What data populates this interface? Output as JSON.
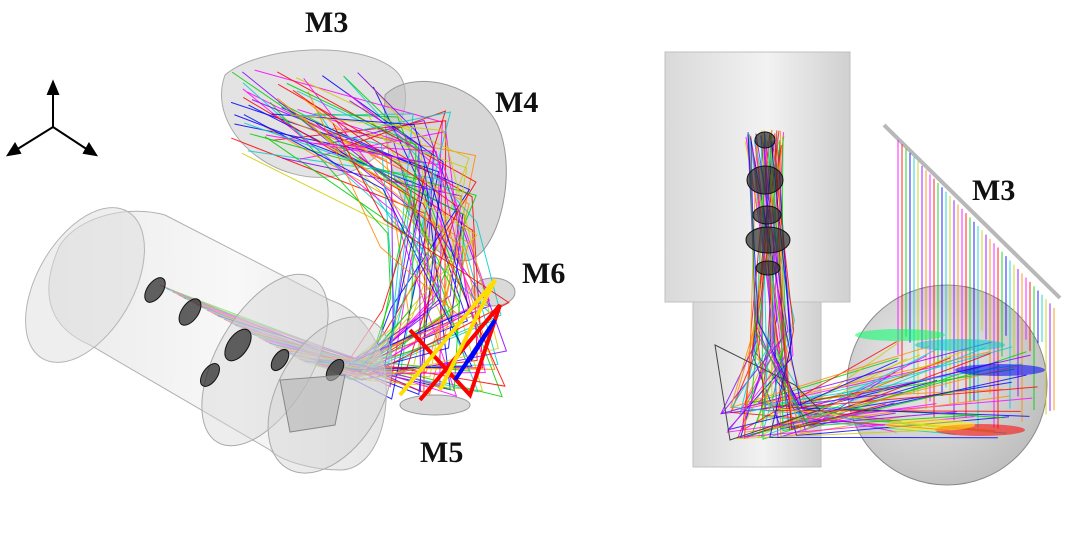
{
  "labels": {
    "left_m3": "M3",
    "left_m4": "M4",
    "left_m5": "M5",
    "left_m6": "M6",
    "right_m3": "M3"
  },
  "colors": {
    "rays": [
      "#ff00ff",
      "#ff0000",
      "#00cc00",
      "#0000ff",
      "#00cccc",
      "#cccc00",
      "#8800ff",
      "#ff8800"
    ],
    "body": "#cfcfcf",
    "body_edge": "#a0a0a0",
    "lens": "#2e2e2e"
  },
  "icons": {
    "axes": "axis-triad-icon"
  }
}
